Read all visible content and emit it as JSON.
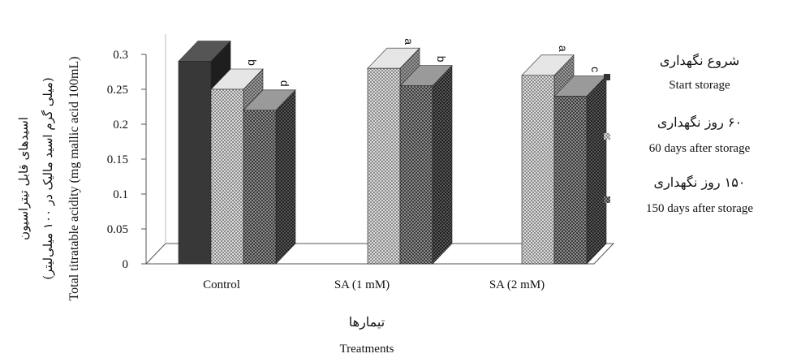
{
  "chart_data": {
    "type": "bar",
    "bar_3d": true,
    "title": "",
    "xlabel_fa": "تیمارها",
    "xlabel_en": "Treatments",
    "ylabel_fa_line1": "اسیدهای قابل تیتراسیون",
    "ylabel_fa_line2": "(میلی گرم اسید مالیک در ۱۰۰ میلی‌لیتر)",
    "ylabel_en": "Total titratable acidity (mg mallic acid 100mL)",
    "ylim": [
      0,
      0.3
    ],
    "yticks": [
      "0",
      "0.05",
      "0.1",
      "0.15",
      "0.2",
      "0.25",
      "0.3"
    ],
    "categories": [
      "Control",
      "SA (1 mM)",
      "SA (2 mM)"
    ],
    "series": [
      {
        "name_fa": "شروع نگهداری",
        "name_en": "Start storage",
        "color": "#3a3a3a",
        "values": [
          0.29,
          null,
          null
        ],
        "letters": [
          "",
          "",
          ""
        ]
      },
      {
        "name_fa": "۶۰ روز نگهداری",
        "name_en": "60 days after storage",
        "color": "#c9c9c9",
        "values": [
          0.25,
          0.28,
          0.27
        ],
        "letters": [
          "b",
          "a",
          "a"
        ]
      },
      {
        "name_fa": "۱۵۰ روز نگهداری",
        "name_en": "150 days after storage",
        "color": "#6a6a6a",
        "values": [
          0.22,
          0.255,
          0.24
        ],
        "letters": [
          "d",
          "b",
          "c"
        ]
      }
    ],
    "grid": false,
    "legend_position": "right"
  }
}
